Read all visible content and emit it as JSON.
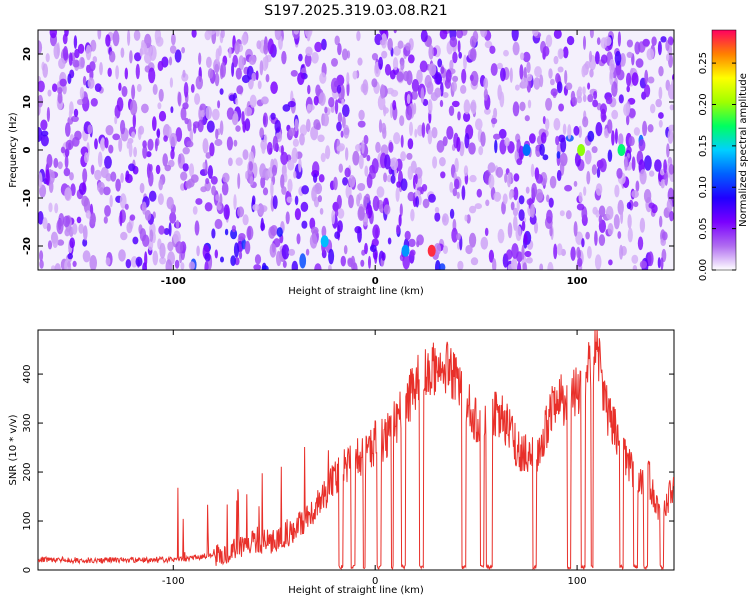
{
  "title": "S197.2025.319.03.08.R21",
  "colors": {
    "snr_line": "#e8302a",
    "axis": "#000000",
    "gradient_stops": [
      "#ffffff",
      "#b06cf0",
      "#7a00ff",
      "#2000ff",
      "#0060ff",
      "#00d0ff",
      "#00ff60",
      "#a0ff00",
      "#ffff00",
      "#ff8000",
      "#ff0060"
    ]
  },
  "chart_data": [
    {
      "type": "heatmap",
      "xlabel": "Height of straight line (km)",
      "ylabel": "Frequency (Hz)",
      "xlim": [
        -167,
        148
      ],
      "ylim": [
        -25,
        25
      ],
      "x_ticks": [
        -100,
        0,
        100
      ],
      "y_ticks": [
        -20,
        -10,
        0,
        10,
        20
      ],
      "colorbar": {
        "label": "Normalized spectral amplitude",
        "range": [
          0,
          0.29
        ],
        "ticks": [
          "0.00",
          "0.05",
          "0.10",
          "0.15",
          "0.20",
          "0.25"
        ]
      },
      "hotspots": [
        {
          "x": 28,
          "y": -21,
          "value": 0.28
        },
        {
          "x": 102,
          "y": 0,
          "value": 0.2
        },
        {
          "x": 122,
          "y": 0,
          "value": 0.17
        },
        {
          "x": -25,
          "y": -19,
          "value": 0.14
        },
        {
          "x": 15,
          "y": -21,
          "value": 0.13
        },
        {
          "x": 75,
          "y": 0,
          "value": 0.12
        }
      ]
    },
    {
      "type": "line",
      "xlabel": "Height of straight line (km)",
      "ylabel": "SNR (10 * v/v)",
      "xlim": [
        -167,
        148
      ],
      "ylim": [
        0,
        490
      ],
      "x_ticks": [
        -100,
        0,
        100
      ],
      "y_ticks": [
        0,
        100,
        200,
        300,
        400
      ],
      "series": [
        {
          "x": [
            -167,
            -150,
            -130,
            -110,
            -100,
            -90,
            -80,
            -70,
            -60,
            -50,
            -40,
            -30,
            -25,
            -20,
            -15,
            -10,
            -5,
            0,
            5,
            10,
            15,
            20,
            25,
            30,
            35,
            40,
            45,
            50,
            55,
            60,
            65,
            70,
            75,
            80,
            85,
            90,
            95,
            100,
            105,
            110,
            115,
            120,
            125,
            130,
            135,
            140,
            148
          ],
          "values": [
            22,
            20,
            20,
            21,
            20,
            25,
            30,
            40,
            55,
            60,
            80,
            130,
            150,
            190,
            210,
            240,
            230,
            260,
            270,
            300,
            340,
            380,
            400,
            420,
            410,
            380,
            350,
            310,
            290,
            320,
            300,
            250,
            240,
            230,
            290,
            360,
            340,
            370,
            410,
            450,
            320,
            270,
            230,
            180,
            200,
            120,
            160
          ]
        }
      ]
    }
  ]
}
